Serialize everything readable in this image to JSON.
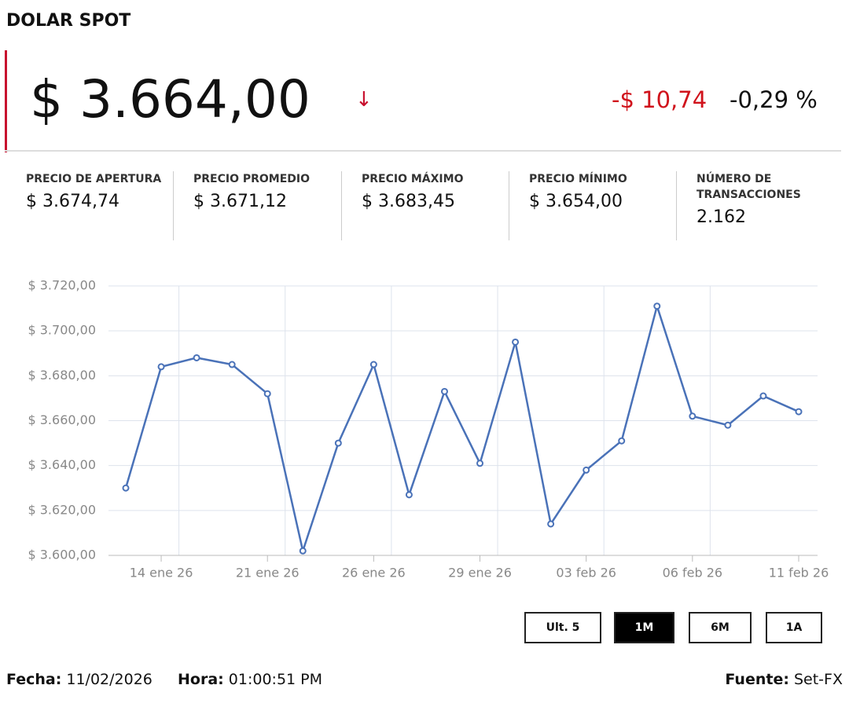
{
  "header": {
    "title": "DOLAR SPOT",
    "price": "$ 3.664,00",
    "change": "-$ 10,74",
    "change_pct": "-0,29 %"
  },
  "stats": [
    {
      "label": "PRECIO DE APERTURA",
      "value": "$ 3.674,74"
    },
    {
      "label": "PRECIO PROMEDIO",
      "value": "$ 3.671,12"
    },
    {
      "label": "PRECIO MÁXIMO",
      "value": "$ 3.683,45"
    },
    {
      "label": "PRECIO MÍNIMO",
      "value": "$ 3.654,00"
    },
    {
      "label": "NÚMERO DE TRANSACCIONES",
      "value": "2.162"
    }
  ],
  "chart_data": {
    "type": "line",
    "categories": [
      null,
      "14 ene 26",
      null,
      null,
      "21 ene 26",
      null,
      null,
      "26 ene 26",
      null,
      null,
      "29 ene 26",
      null,
      null,
      "03 feb 26",
      null,
      null,
      "06 feb 26",
      null,
      null,
      "11 feb 26"
    ],
    "series": [
      {
        "color": "#4a72b8",
        "values": [
          3630,
          3684,
          3688,
          3685,
          3672,
          3602,
          3650,
          3685,
          3627,
          3673,
          3641,
          3695,
          3614,
          3638,
          3651,
          3711,
          3662,
          3658,
          3671,
          3664
        ]
      }
    ],
    "ylim": [
      3600,
      3720
    ],
    "yticks": [
      {
        "value": 3600,
        "label": "$ 3.600,00"
      },
      {
        "value": 3620,
        "label": "$ 3.620,00"
      },
      {
        "value": 3640,
        "label": "$ 3.640,00"
      },
      {
        "value": 3660,
        "label": "$ 3.660,00"
      },
      {
        "value": 3680,
        "label": "$ 3.680,00"
      },
      {
        "value": 3700,
        "label": "$ 3.700,00"
      },
      {
        "value": 3720,
        "label": "$ 3.720,00"
      }
    ],
    "grid": true
  },
  "range_buttons": {
    "items": [
      "Ult. 5",
      "1M",
      "6M",
      "1A"
    ],
    "active": 1
  },
  "footer": {
    "date_label": "Fecha:",
    "date": "11/02/2026",
    "time_label": "Hora:",
    "time": "01:00:51 PM",
    "source_label": "Fuente:",
    "source": "Set-FX"
  }
}
